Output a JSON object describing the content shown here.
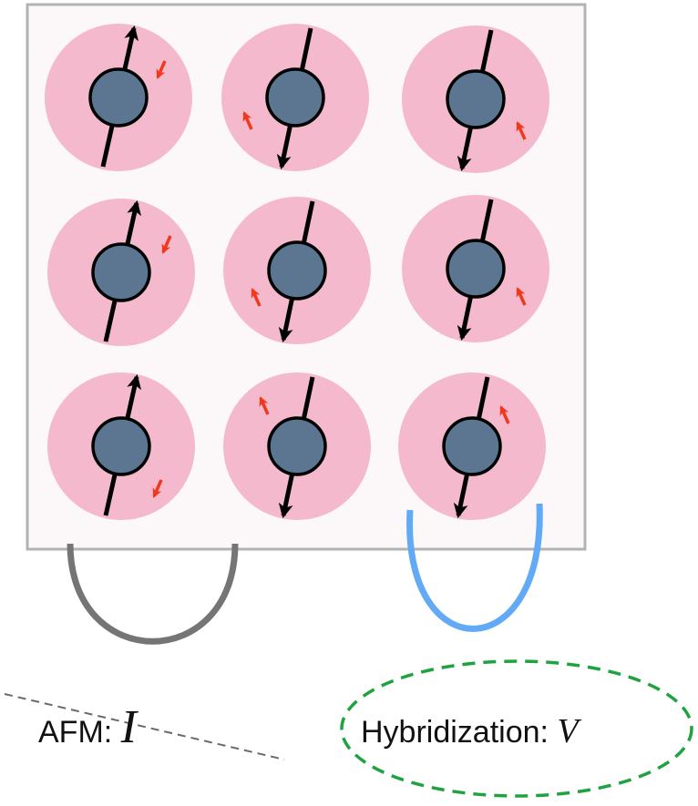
{
  "labels": {
    "afm_prefix": "AFM: ",
    "afm_symbol": "I",
    "hybridization_prefix": "Hybridization: ",
    "hybridization_symbol": "V"
  },
  "colors": {
    "frame_fill": "#fcf8f9",
    "frame_stroke": "#b3b3b3",
    "site": "#f4b9cd",
    "ion": "#5c7590",
    "spin_arrow": "#000000",
    "electron_arrow": "#f0391c",
    "afm_link": "#757575",
    "hybridization_link": "#62aaf5",
    "hybridization_ellipse": "#1fa340",
    "pointer_line": "#6a6a6a"
  },
  "lattice": {
    "rows": 3,
    "columns": 3,
    "local_spin": [
      [
        "up",
        "down",
        "down"
      ],
      [
        "up",
        "down",
        "down"
      ],
      [
        "up",
        "down",
        "down"
      ]
    ],
    "conduction_spin": [
      [
        "down",
        "up",
        "up"
      ],
      [
        "down",
        "up",
        "up"
      ],
      [
        "down",
        "up",
        "up"
      ]
    ]
  },
  "icons": {
    "lattice_site": "pink-disk-icon",
    "ion_core": "gray-ball-icon",
    "local_moment": "black-arrow-icon",
    "conduction_electron": "red-arrow-icon"
  }
}
